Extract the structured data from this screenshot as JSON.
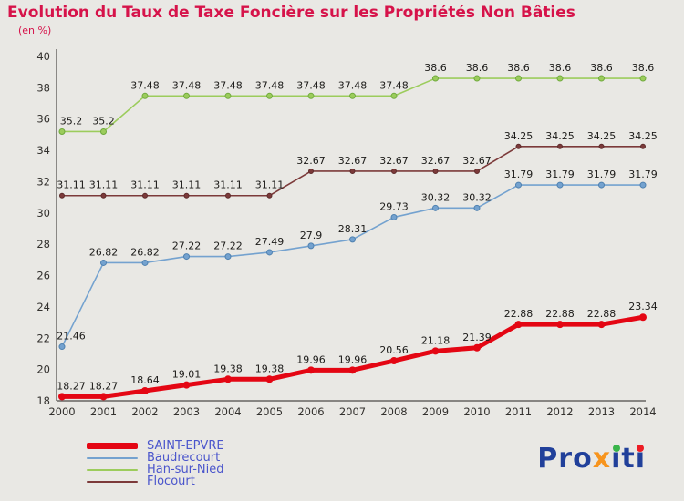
{
  "chart_data": {
    "type": "line",
    "title": "Evolution du Taux de Taxe Foncière sur les Propriétés Non Bâties",
    "subtitle": "(en %)",
    "x": [
      "2000",
      "2001",
      "2002",
      "2003",
      "2004",
      "2005",
      "2006",
      "2007",
      "2008",
      "2009",
      "2010",
      "2011",
      "2012",
      "2013",
      "2014"
    ],
    "ylim": [
      18,
      40
    ],
    "y_ticks": [
      18,
      20,
      22,
      24,
      26,
      28,
      30,
      32,
      34,
      36,
      38,
      40
    ],
    "grid": false,
    "legend_position": "bottom-left",
    "series": [
      {
        "name": "SAINT-EPVRE",
        "color": "#e40613",
        "line_width": 5,
        "marker_r": 4,
        "values": [
          18.27,
          18.27,
          18.64,
          19.01,
          19.38,
          19.38,
          19.96,
          19.96,
          20.56,
          21.18,
          21.39,
          22.88,
          22.88,
          22.88,
          23.34
        ],
        "labels": [
          "18.27",
          "18.27",
          "18.64",
          "19.01",
          "19.38",
          "19.38",
          "19.96",
          "19.96",
          "20.56",
          "21.18",
          "21.39",
          "22.88",
          "22.88",
          "22.88",
          "23.34"
        ]
      },
      {
        "name": "Baudrecourt",
        "color": "#74a2cf",
        "line_width": 1.6,
        "marker_r": 3,
        "marker_stroke": "#4f81b0",
        "values": [
          21.46,
          26.82,
          26.82,
          27.22,
          27.22,
          27.49,
          27.9,
          28.31,
          29.73,
          30.32,
          30.32,
          31.79,
          31.79,
          31.79,
          31.79
        ],
        "labels": [
          "21.46",
          "26.82",
          "26.82",
          "27.22",
          "27.22",
          "27.49",
          "27.9",
          "28.31",
          "29.73",
          "30.32",
          "30.32",
          "31.79",
          "31.79",
          "31.79",
          "31.79"
        ]
      },
      {
        "name": "Han-sur-Nied",
        "color": "#9ccc5c",
        "line_width": 1.6,
        "marker_r": 3,
        "marker_stroke": "#6faa3c",
        "values": [
          35.2,
          35.2,
          37.48,
          37.48,
          37.48,
          37.48,
          37.48,
          37.48,
          37.48,
          38.6,
          38.6,
          38.6,
          38.6,
          38.6,
          38.6
        ],
        "labels": [
          "35.2",
          "35.2",
          "37.48",
          "37.48",
          "37.48",
          "37.48",
          "37.48",
          "37.48",
          "37.48",
          "38.6",
          "38.6",
          "38.6",
          "38.6",
          "38.6",
          "38.6"
        ]
      },
      {
        "name": "Flocourt",
        "color": "#7c3a3a",
        "line_width": 1.6,
        "marker_r": 2.5,
        "marker_stroke": "#5d2b2b",
        "values": [
          31.11,
          31.11,
          31.11,
          31.11,
          31.11,
          31.11,
          32.67,
          32.67,
          32.67,
          32.67,
          32.67,
          34.25,
          34.25,
          34.25,
          34.25
        ],
        "labels": [
          "31.11",
          "31.11",
          "31.11",
          "31.11",
          "31.11",
          "31.11",
          "32.67",
          "32.67",
          "32.67",
          "32.67",
          "32.67",
          "34.25",
          "34.25",
          "34.25",
          "34.25"
        ]
      }
    ]
  },
  "colors": {
    "bg-color": "#e9e8e4",
    "title-color": "#d6134a",
    "legend-color": "#4a55cc",
    "axis-color": "#4d4a47",
    "tick-color": "#33312e",
    "label-color": "#1c1b19"
  },
  "logo": {
    "pro": "Pro",
    "x": "x",
    "i1": "i",
    "t": "t",
    "i2": "i"
  }
}
